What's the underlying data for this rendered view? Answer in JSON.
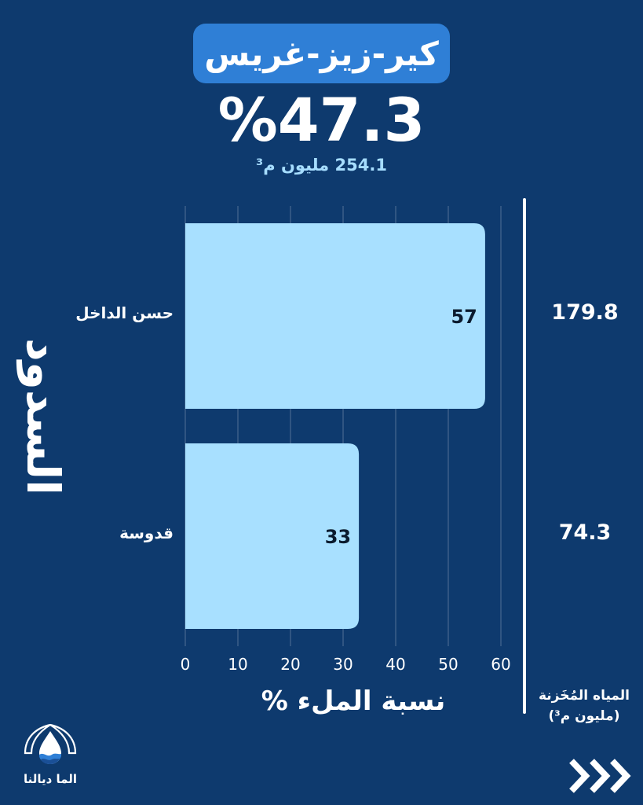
{
  "header": {
    "title": "كير-زيز-غريس",
    "fill_percent": "%47.3",
    "total_volume": "254.1 مليون م³"
  },
  "axis_side_label": "السدود",
  "storage_header": {
    "line1": "المياه المُخَزنة",
    "line2": "(مليون م³)"
  },
  "brand": {
    "name": "الما ديالنا"
  },
  "colors": {
    "background": "#0e3a6e",
    "bar": "#a8e0ff",
    "title_pill": "#2f7fd6",
    "accent_text": "#a6ddff"
  },
  "chart_data": {
    "type": "bar",
    "orientation": "horizontal",
    "xlabel": "نسبة الملء %",
    "xlim": [
      0,
      60
    ],
    "xticks": [
      0,
      10,
      20,
      30,
      40,
      50,
      60
    ],
    "grid": true,
    "categories": [
      "حسن الداخل",
      "قدوسة"
    ],
    "values": [
      57,
      33
    ],
    "data_labels": [
      "57",
      "33"
    ],
    "stored_water": [
      "179.8",
      "74.3"
    ]
  }
}
